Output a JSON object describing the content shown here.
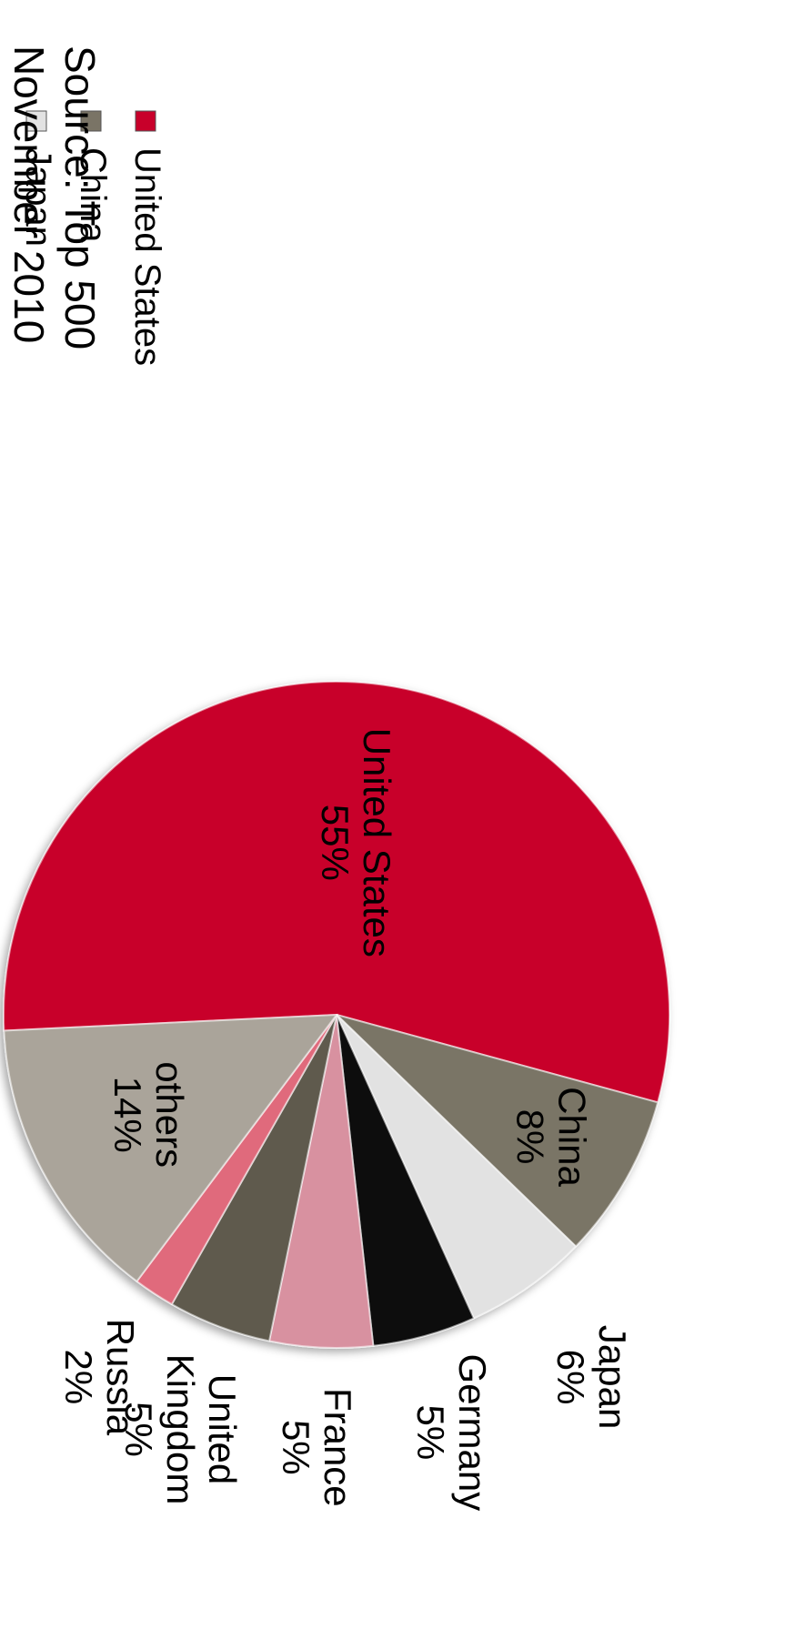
{
  "chart_data": {
    "type": "pie",
    "orientation": "rotated 90° counter-clockwise",
    "slices": [
      {
        "name": "United States",
        "value": 55,
        "label": "United States",
        "pct": "55%",
        "color": "#c8002a"
      },
      {
        "name": "China",
        "value": 8,
        "label": "China",
        "pct": "8%",
        "color": "#7a7466"
      },
      {
        "name": "Japan",
        "value": 6,
        "label": "Japan",
        "pct": "6%",
        "color": "#e2e2e2"
      },
      {
        "name": "Germany",
        "value": 5,
        "label": "Germany",
        "pct": "5%",
        "color": "#0a0a0a"
      },
      {
        "name": "France",
        "value": 5,
        "label": "France",
        "pct": "5%",
        "color": "#d891a0"
      },
      {
        "name": "United Kingdom",
        "value": 5,
        "label": [
          "United",
          "Kingdom"
        ],
        "pct": "5%",
        "color": "#5e5a4e"
      },
      {
        "name": "Russia",
        "value": 2,
        "label": "Russia",
        "pct": "2%",
        "color": "#e06b7c"
      },
      {
        "name": "others",
        "value": 14,
        "label": "others",
        "pct": "14%",
        "color": "#aaa49a"
      }
    ],
    "legend": {
      "placement": "right",
      "entries": [
        "United States",
        "China",
        "Japan",
        "Germany",
        "France",
        "United Kingdom",
        "Russia",
        "others"
      ]
    }
  },
  "source": {
    "line1": "Source: Top 500",
    "line2": "November 2010"
  }
}
